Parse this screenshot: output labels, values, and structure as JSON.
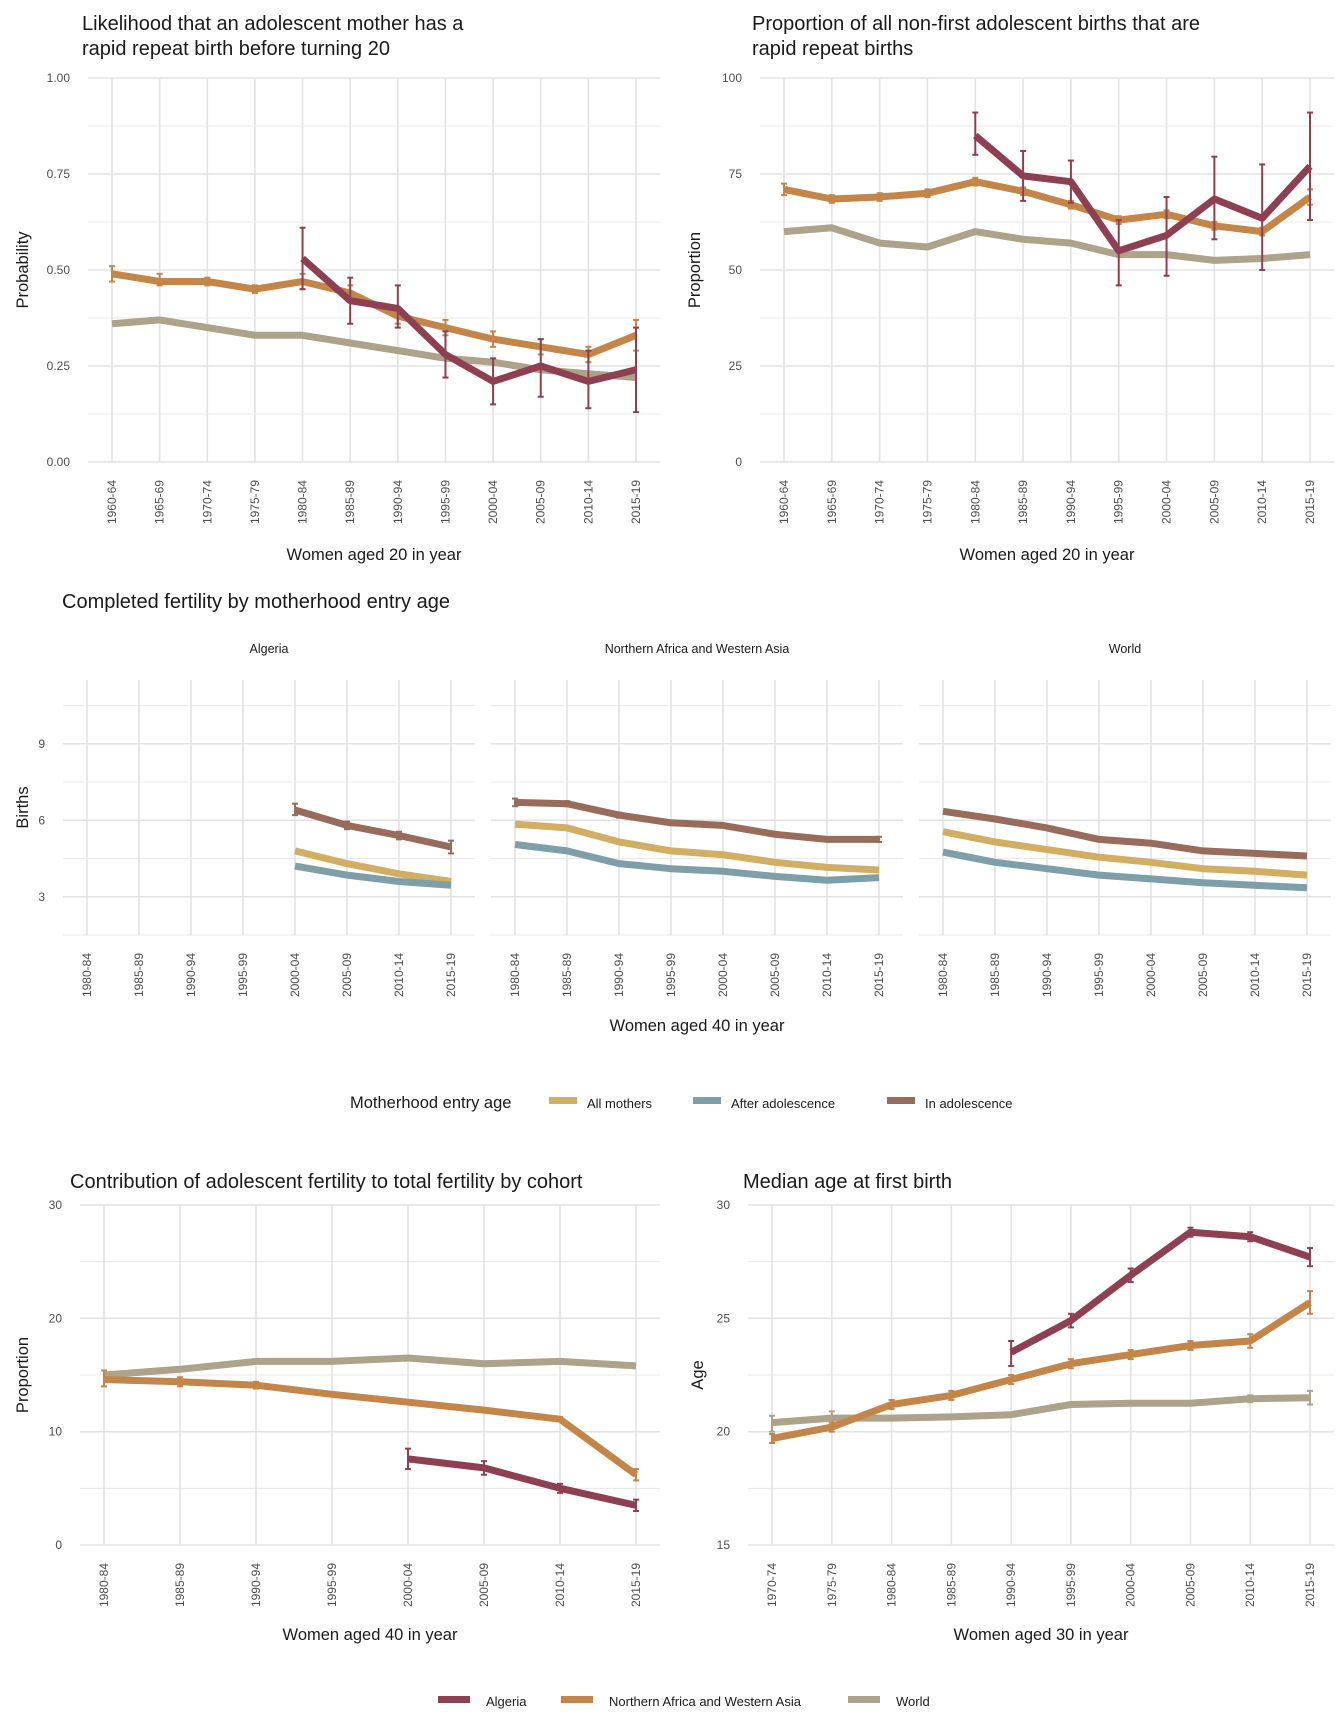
{
  "colors": {
    "algeria": "#8E4052",
    "nawa": "#C48548",
    "world": "#ADA28A",
    "all_mothers": "#D2AE62",
    "after_adolescence": "#7E9EA8",
    "in_adolescence": "#986B5A",
    "grid": "#E3E3E3",
    "text": "#1a1a1a",
    "tick_text": "#4d4d4d"
  },
  "legends": {
    "middle": {
      "title": "Motherhood entry age",
      "items": [
        {
          "label": "All mothers",
          "color_key": "all_mothers"
        },
        {
          "label": "After adolescence",
          "color_key": "after_adolescence"
        },
        {
          "label": "In adolescence",
          "color_key": "in_adolescence"
        }
      ]
    },
    "bottom": {
      "items": [
        {
          "label": "Algeria",
          "color_key": "algeria"
        },
        {
          "label": "Northern Africa and Western Asia",
          "color_key": "nawa"
        },
        {
          "label": "World",
          "color_key": "world"
        }
      ]
    }
  },
  "middle_section_title": "Completed fertility by motherhood entry age",
  "chart_data": [
    {
      "id": "repeat-likelihood",
      "type": "line",
      "title_lines": [
        "Likelihood that an adolescent mother has a",
        "rapid repeat birth before turning 20"
      ],
      "xlabel": "Women aged 20 in year",
      "ylabel": "Probability",
      "categories": [
        "1960-64",
        "1965-69",
        "1970-74",
        "1975-79",
        "1980-84",
        "1985-89",
        "1990-94",
        "1995-99",
        "2000-04",
        "2005-09",
        "2010-14",
        "2015-19"
      ],
      "ylim": [
        0,
        1.0
      ],
      "yticks": [
        0,
        0.25,
        0.5,
        0.75,
        1.0
      ],
      "ytick_labels": [
        "0.00",
        "0.25",
        "0.50",
        "0.75",
        "1.00"
      ],
      "grid": true,
      "series": [
        {
          "name": "World",
          "color_key": "world",
          "values": [
            0.36,
            0.37,
            0.35,
            0.33,
            0.33,
            0.31,
            0.29,
            0.27,
            0.26,
            0.24,
            0.23,
            0.22
          ]
        },
        {
          "name": "Northern Africa and Western Asia",
          "color_key": "nawa",
          "values": [
            0.49,
            0.47,
            0.47,
            0.45,
            0.47,
            0.44,
            0.38,
            0.35,
            0.32,
            0.3,
            0.28,
            0.33
          ],
          "err_low": [
            0.47,
            0.46,
            0.46,
            0.44,
            0.45,
            0.42,
            0.36,
            0.33,
            0.3,
            0.28,
            0.26,
            0.29
          ],
          "err_high": [
            0.51,
            0.49,
            0.48,
            0.46,
            0.49,
            0.46,
            0.4,
            0.37,
            0.34,
            0.32,
            0.3,
            0.37
          ]
        },
        {
          "name": "Algeria",
          "color_key": "algeria",
          "values": [
            null,
            null,
            null,
            null,
            0.53,
            0.42,
            0.4,
            0.28,
            0.21,
            0.25,
            0.21,
            0.24
          ],
          "err_low": [
            null,
            null,
            null,
            null,
            0.45,
            0.36,
            0.35,
            0.22,
            0.15,
            0.17,
            0.14,
            0.13
          ],
          "err_high": [
            null,
            null,
            null,
            null,
            0.61,
            0.48,
            0.46,
            0.34,
            0.27,
            0.32,
            0.29,
            0.35
          ]
        }
      ]
    },
    {
      "id": "repeat-proportion",
      "type": "line",
      "title_lines": [
        "Proportion of all non-first adolescent births that are",
        "rapid repeat births"
      ],
      "xlabel": "Women aged 20 in year",
      "ylabel": "Proportion",
      "categories": [
        "1960-64",
        "1965-69",
        "1970-74",
        "1975-79",
        "1980-84",
        "1985-89",
        "1990-94",
        "1995-99",
        "2000-04",
        "2005-09",
        "2010-14",
        "2015-19"
      ],
      "ylim": [
        0,
        100
      ],
      "yticks": [
        0,
        25,
        50,
        75,
        100
      ],
      "ytick_labels": [
        "0",
        "25",
        "50",
        "75",
        "100"
      ],
      "grid": true,
      "series": [
        {
          "name": "World",
          "color_key": "world",
          "values": [
            60,
            61,
            57,
            56,
            60,
            58,
            57,
            54,
            54,
            52.5,
            53,
            54
          ]
        },
        {
          "name": "Northern Africa and Western Asia",
          "color_key": "nawa",
          "values": [
            71,
            68.5,
            69,
            70,
            73,
            70.5,
            67,
            63,
            64.5,
            61.5,
            60,
            69
          ],
          "err_low": [
            69.5,
            67.5,
            68,
            69,
            72,
            69.5,
            66,
            62,
            63.5,
            60.5,
            59,
            67
          ],
          "err_high": [
            72.5,
            69.5,
            70,
            71,
            74,
            71.5,
            68,
            64,
            65.5,
            62.5,
            61,
            71
          ]
        },
        {
          "name": "Algeria",
          "color_key": "algeria",
          "values": [
            null,
            null,
            null,
            null,
            85,
            74.5,
            73,
            55,
            59,
            68.5,
            63.5,
            77
          ],
          "err_low": [
            null,
            null,
            null,
            null,
            80,
            68,
            67.5,
            46,
            48.5,
            58,
            50,
            63
          ],
          "err_high": [
            null,
            null,
            null,
            null,
            91,
            81,
            78.5,
            63,
            69,
            79.5,
            77.5,
            91
          ]
        }
      ]
    },
    {
      "id": "completed-fertility",
      "type": "line",
      "title": "Completed fertility by motherhood entry age",
      "xlabel": "Women aged 40 in year",
      "ylabel": "Births",
      "categories": [
        "1980-84",
        "1985-89",
        "1990-94",
        "1995-99",
        "2000-04",
        "2005-09",
        "2010-14",
        "2015-19"
      ],
      "ylim": [
        1.5,
        11.5
      ],
      "yticks": [
        3,
        6,
        9
      ],
      "ytick_labels": [
        "3",
        "6",
        "9"
      ],
      "grid": true,
      "facets": [
        {
          "name": "Algeria",
          "series": [
            {
              "name": "In adolescence",
              "color_key": "in_adolescence",
              "values": [
                null,
                null,
                null,
                null,
                6.4,
                5.8,
                5.4,
                4.95
              ],
              "err_low": [
                null,
                null,
                null,
                null,
                6.2,
                5.65,
                5.25,
                4.7
              ],
              "err_high": [
                null,
                null,
                null,
                null,
                6.65,
                5.95,
                5.55,
                5.2
              ]
            },
            {
              "name": "All mothers",
              "color_key": "all_mothers",
              "values": [
                null,
                null,
                null,
                null,
                4.8,
                4.3,
                3.9,
                3.6
              ]
            },
            {
              "name": "After adolescence",
              "color_key": "after_adolescence",
              "values": [
                null,
                null,
                null,
                null,
                4.2,
                3.85,
                3.6,
                3.45
              ]
            }
          ]
        },
        {
          "name": "Northern Africa and Western Asia",
          "series": [
            {
              "name": "In adolescence",
              "color_key": "in_adolescence",
              "values": [
                6.7,
                6.65,
                6.2,
                5.9,
                5.8,
                5.45,
                5.25,
                5.25
              ],
              "err_low": [
                6.55,
                6.55,
                6.1,
                5.85,
                5.75,
                5.4,
                5.2,
                5.15
              ],
              "err_high": [
                6.85,
                6.75,
                6.3,
                5.95,
                5.85,
                5.5,
                5.3,
                5.35
              ]
            },
            {
              "name": "All mothers",
              "color_key": "all_mothers",
              "values": [
                5.85,
                5.7,
                5.15,
                4.8,
                4.65,
                4.35,
                4.15,
                4.05
              ]
            },
            {
              "name": "After adolescence",
              "color_key": "after_adolescence",
              "values": [
                5.05,
                4.8,
                4.3,
                4.1,
                4.0,
                3.8,
                3.65,
                3.75
              ]
            }
          ]
        },
        {
          "name": "World",
          "series": [
            {
              "name": "In adolescence",
              "color_key": "in_adolescence",
              "values": [
                6.35,
                6.05,
                5.7,
                5.25,
                5.1,
                4.8,
                4.7,
                4.6
              ]
            },
            {
              "name": "All mothers",
              "color_key": "all_mothers",
              "values": [
                5.55,
                5.15,
                4.85,
                4.55,
                4.35,
                4.1,
                4.0,
                3.85
              ]
            },
            {
              "name": "After adolescence",
              "color_key": "after_adolescence",
              "values": [
                4.75,
                4.35,
                4.1,
                3.85,
                3.7,
                3.55,
                3.45,
                3.35
              ]
            }
          ]
        }
      ]
    },
    {
      "id": "adolescent-contribution",
      "type": "line",
      "title_lines": [
        "Contribution of adolescent fertility to total fertility by cohort"
      ],
      "xlabel": "Women aged 40 in year",
      "ylabel": "Proportion",
      "categories": [
        "1980-84",
        "1985-89",
        "1990-94",
        "1995-99",
        "2000-04",
        "2005-09",
        "2010-14",
        "2015-19"
      ],
      "ylim": [
        0,
        30
      ],
      "yticks": [
        0,
        10,
        20,
        30
      ],
      "ytick_labels": [
        "0",
        "10",
        "20",
        "30"
      ],
      "grid": true,
      "series": [
        {
          "name": "World",
          "color_key": "world",
          "values": [
            15.0,
            15.5,
            16.2,
            16.2,
            16.5,
            16.0,
            16.2,
            15.8
          ]
        },
        {
          "name": "Northern Africa and Western Asia",
          "color_key": "nawa",
          "values": [
            14.6,
            14.4,
            14.1,
            13.3,
            12.6,
            11.9,
            11.1,
            6.2
          ],
          "err_low": [
            14.0,
            14.0,
            13.8,
            13.3,
            12.6,
            11.9,
            10.9,
            5.7
          ],
          "err_high": [
            15.4,
            14.8,
            14.4,
            13.3,
            12.6,
            11.9,
            11.3,
            6.7
          ]
        },
        {
          "name": "Algeria",
          "color_key": "algeria",
          "values": [
            null,
            null,
            null,
            null,
            7.6,
            6.8,
            5.0,
            3.5
          ],
          "err_low": [
            null,
            null,
            null,
            null,
            6.7,
            6.2,
            4.6,
            3.0
          ],
          "err_high": [
            null,
            null,
            null,
            null,
            8.5,
            7.4,
            5.4,
            4.0
          ]
        }
      ]
    },
    {
      "id": "median-age-first-birth",
      "type": "line",
      "title_lines": [
        "Median age at first birth"
      ],
      "xlabel": "Women aged 30 in year",
      "ylabel": "Age",
      "categories": [
        "1970-74",
        "1975-79",
        "1980-84",
        "1985-89",
        "1990-94",
        "1995-99",
        "2000-04",
        "2005-09",
        "2010-14",
        "2015-19"
      ],
      "ylim": [
        15,
        30
      ],
      "yticks": [
        15,
        20,
        25,
        30
      ],
      "ytick_labels": [
        "15",
        "20",
        "25",
        "30"
      ],
      "grid": true,
      "series": [
        {
          "name": "World",
          "color_key": "world",
          "values": [
            20.4,
            20.6,
            20.6,
            20.65,
            20.75,
            21.2,
            21.25,
            21.25,
            21.45,
            21.5
          ],
          "err_low": [
            20.0,
            20.3,
            20.6,
            20.65,
            20.75,
            21.2,
            21.25,
            21.25,
            21.3,
            21.2
          ],
          "err_high": [
            20.7,
            20.9,
            20.6,
            20.65,
            20.75,
            21.2,
            21.25,
            21.25,
            21.6,
            21.8
          ]
        },
        {
          "name": "Northern Africa and Western Asia",
          "color_key": "nawa",
          "values": [
            19.7,
            20.2,
            21.2,
            21.6,
            22.3,
            23.0,
            23.4,
            23.8,
            24.0,
            25.7
          ],
          "err_low": [
            19.5,
            20.0,
            21.0,
            21.4,
            22.1,
            22.8,
            23.2,
            23.6,
            23.7,
            25.2
          ],
          "err_high": [
            19.9,
            20.4,
            21.4,
            21.8,
            22.5,
            23.2,
            23.6,
            24.0,
            24.3,
            26.2
          ]
        },
        {
          "name": "Algeria",
          "color_key": "algeria",
          "values": [
            null,
            null,
            null,
            null,
            23.5,
            24.9,
            26.9,
            28.8,
            28.6,
            27.7
          ],
          "err_low": [
            null,
            null,
            null,
            null,
            22.9,
            24.6,
            26.6,
            28.6,
            28.4,
            27.3
          ],
          "err_high": [
            null,
            null,
            null,
            null,
            24.0,
            25.2,
            27.2,
            29.0,
            28.8,
            28.1
          ]
        }
      ]
    }
  ]
}
